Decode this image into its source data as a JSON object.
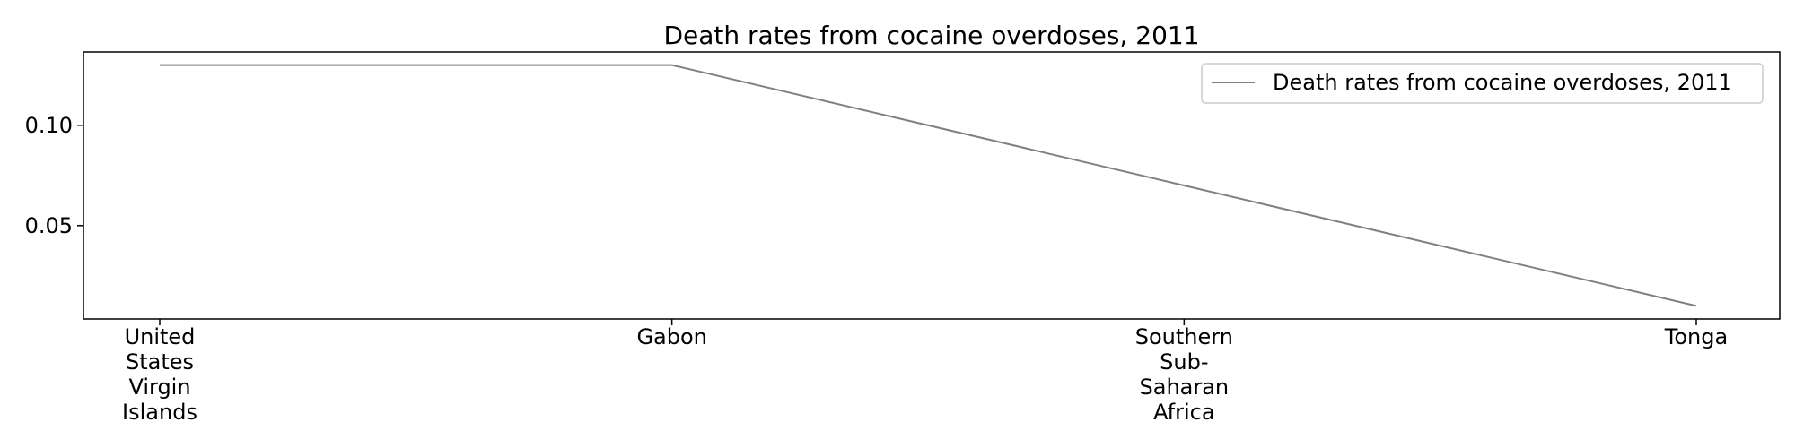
{
  "chart_data": {
    "type": "line",
    "title": "Death rates from cocaine overdoses, 2011",
    "xlabel": "",
    "ylabel": "",
    "categories": [
      "United States Virgin Islands",
      "Gabon",
      "Southern Sub-Saharan Africa",
      "Tonga"
    ],
    "category_label_lines": [
      [
        "United",
        "States",
        "Virgin",
        "Islands"
      ],
      [
        "Gabon"
      ],
      [
        "Southern",
        "Sub-",
        "Saharan",
        "Africa"
      ],
      [
        "Tonga"
      ]
    ],
    "series": [
      {
        "name": "Death rates from cocaine overdoses, 2011",
        "values": [
          0.13,
          0.13,
          0.07,
          0.01
        ],
        "color": "#808080"
      }
    ],
    "ylim": [
      0.0035,
      0.1365
    ],
    "yticks": [
      0.05,
      0.1
    ],
    "ytick_labels": [
      "0.05",
      "0.10"
    ],
    "grid": false,
    "legend_position": "top-right"
  }
}
